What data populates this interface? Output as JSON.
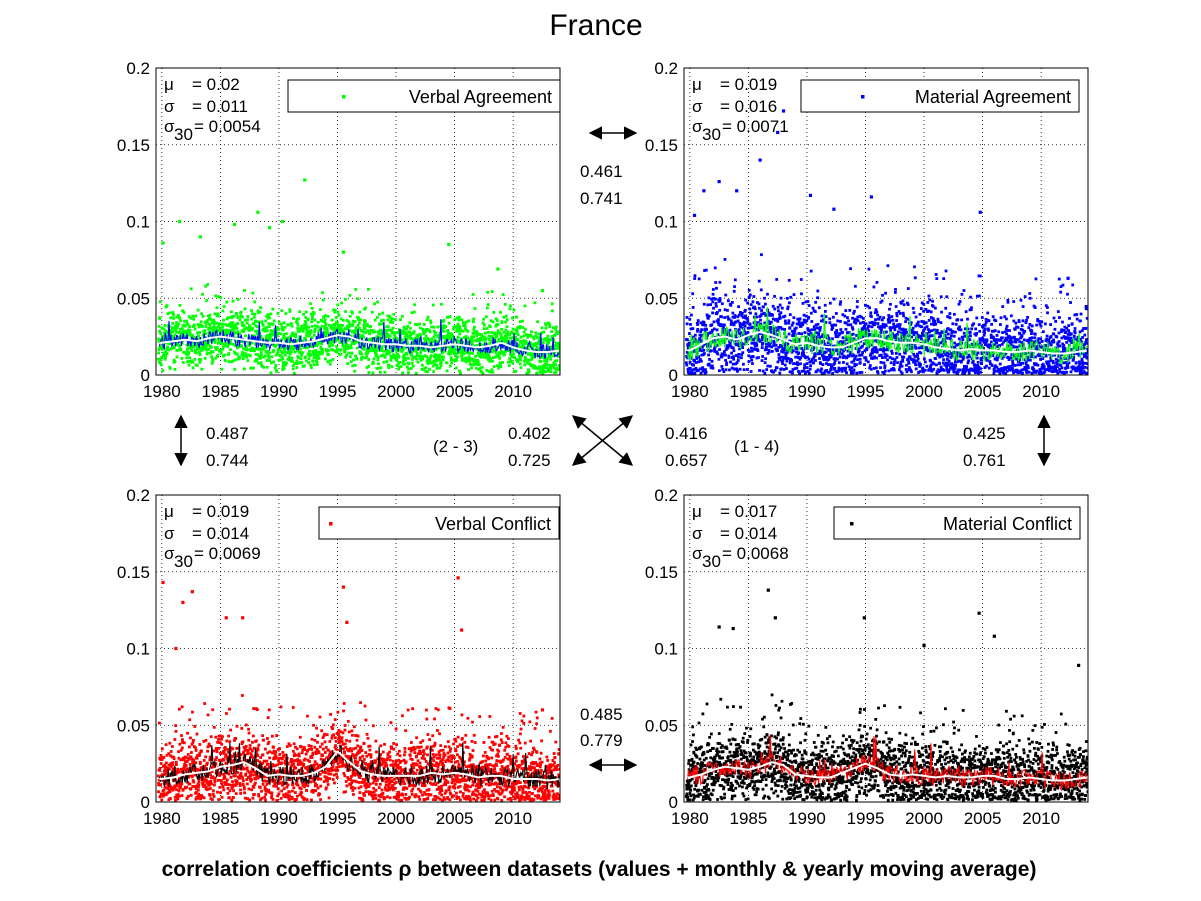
{
  "figure": {
    "title": "France",
    "footer": "correlation coefficients ρ between datasets (values + monthly & yearly moving average)"
  },
  "chart_data": [
    {
      "type": "scatter",
      "panel": "top-left",
      "series": [
        {
          "name": "Verbal Agreement",
          "color": "#00ff00",
          "role": "daily values"
        },
        {
          "color": "#0000ff",
          "role": "monthly moving average"
        },
        {
          "color": "#ffffff",
          "role": "yearly moving average"
        }
      ],
      "x_ticks": [
        "1980",
        "1985",
        "1990",
        "1995",
        "2000",
        "2005",
        "2010"
      ],
      "y_ticks": [
        "0",
        "0.05",
        "0.1",
        "0.15",
        "0.2"
      ],
      "xlim": [
        1979.5,
        2014.0
      ],
      "ylim": [
        0,
        0.2
      ],
      "grid": true,
      "legend": "top-right",
      "stats": {
        "mu": "= 0.02",
        "sigma": "= 0.011",
        "sigma30": "= 0.0054"
      },
      "mean": 0.02,
      "spread": 0.011,
      "seed": 11,
      "yearly_avg": [
        [
          1980,
          0.021
        ],
        [
          1981,
          0.022
        ],
        [
          1982,
          0.023
        ],
        [
          1983,
          0.022
        ],
        [
          1984,
          0.024
        ],
        [
          1985,
          0.025
        ],
        [
          1986,
          0.024
        ],
        [
          1987,
          0.023
        ],
        [
          1988,
          0.022
        ],
        [
          1989,
          0.021
        ],
        [
          1990,
          0.021
        ],
        [
          1991,
          0.02
        ],
        [
          1992,
          0.021
        ],
        [
          1993,
          0.022
        ],
        [
          1994,
          0.024
        ],
        [
          1995,
          0.026
        ],
        [
          1996,
          0.025
        ],
        [
          1997,
          0.022
        ],
        [
          1998,
          0.021
        ],
        [
          1999,
          0.02
        ],
        [
          2000,
          0.02
        ],
        [
          2001,
          0.019
        ],
        [
          2002,
          0.019
        ],
        [
          2003,
          0.018
        ],
        [
          2004,
          0.019
        ],
        [
          2005,
          0.02
        ],
        [
          2006,
          0.019
        ],
        [
          2007,
          0.018
        ],
        [
          2008,
          0.019
        ],
        [
          2009,
          0.021
        ],
        [
          2010,
          0.018
        ],
        [
          2011,
          0.016
        ],
        [
          2012,
          0.015
        ],
        [
          2013,
          0.015
        ],
        [
          2014,
          0.016
        ]
      ],
      "outliers": [
        [
          1980.1,
          0.086
        ],
        [
          1981.5,
          0.1
        ],
        [
          1983.3,
          0.09
        ],
        [
          1986.2,
          0.098
        ],
        [
          1988.2,
          0.106
        ],
        [
          1989.2,
          0.096
        ],
        [
          1990.3,
          0.1
        ],
        [
          1992.2,
          0.127
        ],
        [
          1995.5,
          0.08
        ],
        [
          2004.5,
          0.085
        ],
        [
          2008.7,
          0.069
        ],
        [
          2012.5,
          0.055
        ]
      ]
    },
    {
      "type": "scatter",
      "panel": "top-right",
      "series": [
        {
          "name": "Material Agreement",
          "color": "#0000ff",
          "role": "daily values"
        },
        {
          "color": "#00ff00",
          "role": "monthly moving average"
        },
        {
          "color": "#ffffff",
          "role": "yearly moving average"
        }
      ],
      "x_ticks": [
        "1980",
        "1985",
        "1990",
        "1995",
        "2000",
        "2005",
        "2010"
      ],
      "y_ticks": [
        "0",
        "0.05",
        "0.1",
        "0.15",
        "0.2"
      ],
      "xlim": [
        1979.5,
        2014.0
      ],
      "ylim": [
        0,
        0.2
      ],
      "grid": true,
      "legend": "top-right",
      "stats": {
        "mu": "= 0.019",
        "sigma": "= 0.016",
        "sigma30": "= 0.0071"
      },
      "mean": 0.019,
      "spread": 0.016,
      "seed": 23,
      "yearly_avg": [
        [
          1980,
          0.016
        ],
        [
          1981,
          0.02
        ],
        [
          1982,
          0.024
        ],
        [
          1983,
          0.025
        ],
        [
          1984,
          0.023
        ],
        [
          1985,
          0.026
        ],
        [
          1986,
          0.028
        ],
        [
          1987,
          0.026
        ],
        [
          1988,
          0.023
        ],
        [
          1989,
          0.02
        ],
        [
          1990,
          0.021
        ],
        [
          1991,
          0.019
        ],
        [
          1992,
          0.018
        ],
        [
          1993,
          0.018
        ],
        [
          1994,
          0.021
        ],
        [
          1995,
          0.024
        ],
        [
          1996,
          0.024
        ],
        [
          1997,
          0.022
        ],
        [
          1998,
          0.021
        ],
        [
          1999,
          0.021
        ],
        [
          2000,
          0.02
        ],
        [
          2001,
          0.018
        ],
        [
          2002,
          0.017
        ],
        [
          2003,
          0.016
        ],
        [
          2004,
          0.017
        ],
        [
          2005,
          0.016
        ],
        [
          2006,
          0.016
        ],
        [
          2007,
          0.015
        ],
        [
          2008,
          0.015
        ],
        [
          2009,
          0.016
        ],
        [
          2010,
          0.015
        ],
        [
          2011,
          0.014
        ],
        [
          2012,
          0.014
        ],
        [
          2013,
          0.015
        ],
        [
          2014,
          0.016
        ]
      ],
      "outliers": [
        [
          1980.4,
          0.104
        ],
        [
          1981.2,
          0.12
        ],
        [
          1982.5,
          0.126
        ],
        [
          1984.0,
          0.12
        ],
        [
          1986.0,
          0.14
        ],
        [
          1987.5,
          0.158
        ],
        [
          1988.0,
          0.172
        ],
        [
          1990.3,
          0.117
        ],
        [
          1992.3,
          0.108
        ],
        [
          1995.5,
          0.116
        ],
        [
          2004.8,
          0.106
        ],
        [
          2012.3,
          0.063
        ]
      ]
    },
    {
      "type": "scatter",
      "panel": "bottom-left",
      "series": [
        {
          "name": "Verbal Conflict",
          "color": "#ff0000",
          "role": "daily values"
        },
        {
          "color": "#000000",
          "role": "monthly moving average"
        },
        {
          "color": "#ffffff",
          "role": "yearly moving average"
        }
      ],
      "x_ticks": [
        "1980",
        "1985",
        "1990",
        "1995",
        "2000",
        "2005",
        "2010"
      ],
      "y_ticks": [
        "0",
        "0.05",
        "0.1",
        "0.15",
        "0.2"
      ],
      "xlim": [
        1979.5,
        2014.0
      ],
      "ylim": [
        0,
        0.2
      ],
      "grid": true,
      "legend": "top-right",
      "stats": {
        "mu": "= 0.019",
        "sigma": "= 0.014",
        "sigma30": "= 0.0069"
      },
      "mean": 0.019,
      "spread": 0.014,
      "seed": 37,
      "yearly_avg": [
        [
          1980,
          0.015
        ],
        [
          1981,
          0.016
        ],
        [
          1982,
          0.018
        ],
        [
          1983,
          0.019
        ],
        [
          1984,
          0.02
        ],
        [
          1985,
          0.023
        ],
        [
          1986,
          0.024
        ],
        [
          1987,
          0.026
        ],
        [
          1988,
          0.022
        ],
        [
          1989,
          0.017
        ],
        [
          1990,
          0.018
        ],
        [
          1991,
          0.017
        ],
        [
          1992,
          0.017
        ],
        [
          1993,
          0.019
        ],
        [
          1994,
          0.023
        ],
        [
          1995,
          0.033
        ],
        [
          1996,
          0.026
        ],
        [
          1997,
          0.02
        ],
        [
          1998,
          0.018
        ],
        [
          1999,
          0.017
        ],
        [
          2000,
          0.017
        ],
        [
          2001,
          0.017
        ],
        [
          2002,
          0.017
        ],
        [
          2003,
          0.019
        ],
        [
          2004,
          0.018
        ],
        [
          2005,
          0.019
        ],
        [
          2006,
          0.018
        ],
        [
          2007,
          0.016
        ],
        [
          2008,
          0.017
        ],
        [
          2009,
          0.017
        ],
        [
          2010,
          0.015
        ],
        [
          2011,
          0.015
        ],
        [
          2012,
          0.015
        ],
        [
          2013,
          0.014
        ],
        [
          2014,
          0.015
        ]
      ],
      "outliers": [
        [
          1980.1,
          0.143
        ],
        [
          1981.2,
          0.1
        ],
        [
          1981.8,
          0.13
        ],
        [
          1982.6,
          0.137
        ],
        [
          1985.5,
          0.12
        ],
        [
          1986.9,
          0.12
        ],
        [
          1995.5,
          0.14
        ],
        [
          1995.8,
          0.117
        ],
        [
          2005.3,
          0.146
        ],
        [
          2005.6,
          0.112
        ],
        [
          2012.5,
          0.06
        ]
      ]
    },
    {
      "type": "scatter",
      "panel": "bottom-right",
      "series": [
        {
          "name": "Material Conflict",
          "color": "#000000",
          "role": "daily values"
        },
        {
          "color": "#ff0000",
          "role": "monthly moving average"
        },
        {
          "color": "#ffffff",
          "role": "yearly moving average"
        }
      ],
      "x_ticks": [
        "1980",
        "1985",
        "1990",
        "1995",
        "2000",
        "2005",
        "2010"
      ],
      "y_ticks": [
        "0",
        "0.05",
        "0.1",
        "0.15",
        "0.2"
      ],
      "xlim": [
        1979.5,
        2014.0
      ],
      "ylim": [
        0,
        0.2
      ],
      "grid": true,
      "legend": "top-right",
      "stats": {
        "mu": "= 0.017",
        "sigma": "= 0.014",
        "sigma30": "= 0.0068"
      },
      "mean": 0.017,
      "spread": 0.014,
      "seed": 53,
      "yearly_avg": [
        [
          1980,
          0.016
        ],
        [
          1981,
          0.018
        ],
        [
          1982,
          0.021
        ],
        [
          1983,
          0.023
        ],
        [
          1984,
          0.022
        ],
        [
          1985,
          0.021
        ],
        [
          1986,
          0.023
        ],
        [
          1987,
          0.026
        ],
        [
          1988,
          0.024
        ],
        [
          1989,
          0.018
        ],
        [
          1990,
          0.017
        ],
        [
          1991,
          0.016
        ],
        [
          1992,
          0.016
        ],
        [
          1993,
          0.019
        ],
        [
          1994,
          0.022
        ],
        [
          1995,
          0.025
        ],
        [
          1996,
          0.022
        ],
        [
          1997,
          0.018
        ],
        [
          1998,
          0.017
        ],
        [
          1999,
          0.018
        ],
        [
          2000,
          0.017
        ],
        [
          2001,
          0.016
        ],
        [
          2002,
          0.017
        ],
        [
          2003,
          0.016
        ],
        [
          2004,
          0.016
        ],
        [
          2005,
          0.017
        ],
        [
          2006,
          0.017
        ],
        [
          2007,
          0.015
        ],
        [
          2008,
          0.015
        ],
        [
          2009,
          0.016
        ],
        [
          2010,
          0.015
        ],
        [
          2011,
          0.014
        ],
        [
          2012,
          0.014
        ],
        [
          2013,
          0.015
        ],
        [
          2014,
          0.016
        ]
      ],
      "outliers": [
        [
          1982.5,
          0.114
        ],
        [
          1983.7,
          0.113
        ],
        [
          1986.7,
          0.138
        ],
        [
          1987.3,
          0.12
        ],
        [
          1994.9,
          0.12
        ],
        [
          2000.0,
          0.102
        ],
        [
          2004.7,
          0.123
        ],
        [
          2006.0,
          0.108
        ],
        [
          2013.2,
          0.089
        ]
      ]
    }
  ],
  "correlations": {
    "top": {
      "pearson": "0.461",
      "moving_avg": "0.741"
    },
    "bottom": {
      "pearson": "0.485",
      "moving_avg": "0.779"
    },
    "left": {
      "pearson": "0.487",
      "moving_avg": "0.744"
    },
    "right": {
      "pearson": "0.425",
      "moving_avg": "0.761"
    },
    "diag_2_3": {
      "label": "(2 - 3)",
      "pearson": "0.402",
      "moving_avg": "0.725"
    },
    "diag_1_4": {
      "label": "(1 - 4)",
      "pearson": "0.416",
      "moving_avg": "0.657"
    }
  }
}
